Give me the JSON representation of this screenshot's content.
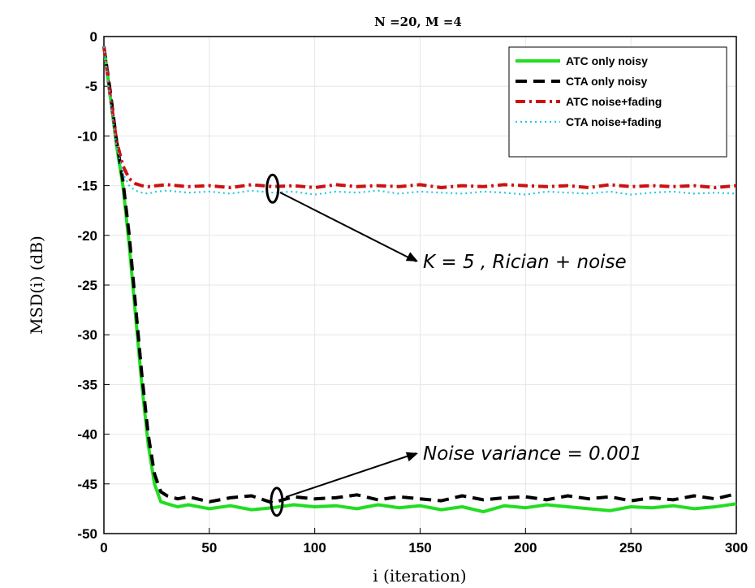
{
  "chart_data": {
    "type": "line",
    "title": "N =20, M =4",
    "xlabel": "i (iteration)",
    "ylabel": "MSD(i) (dB)",
    "xlim": [
      0,
      300
    ],
    "ylim": [
      -50,
      0
    ],
    "xticks": [
      0,
      50,
      100,
      150,
      200,
      250,
      300
    ],
    "yticks": [
      0,
      -5,
      -10,
      -15,
      -20,
      -25,
      -30,
      -35,
      -40,
      -45,
      -50
    ],
    "grid": true,
    "legend_position": "top-right",
    "series": [
      {
        "name": "ATC only noisy",
        "color": "#22dd22",
        "style": "solid",
        "x": [
          0,
          3,
          6,
          9,
          12,
          15,
          18,
          21,
          24,
          27,
          30,
          35,
          40,
          50,
          60,
          70,
          80,
          90,
          100,
          110,
          120,
          130,
          140,
          150,
          160,
          170,
          180,
          190,
          200,
          210,
          220,
          230,
          240,
          250,
          260,
          270,
          280,
          290,
          300
        ],
        "values": [
          -1,
          -6,
          -11,
          -15,
          -21,
          -28,
          -35,
          -41,
          -45,
          -46.8,
          -47,
          -47.3,
          -47.1,
          -47.5,
          -47.2,
          -47.6,
          -47.4,
          -47.1,
          -47.3,
          -47.2,
          -47.5,
          -47.1,
          -47.4,
          -47.2,
          -47.6,
          -47.3,
          -47.8,
          -47.2,
          -47.4,
          -47.1,
          -47.3,
          -47.5,
          -47.7,
          -47.3,
          -47.4,
          -47.2,
          -47.5,
          -47.3,
          -47
        ]
      },
      {
        "name": "CTA only noisy",
        "color": "#000000",
        "style": "dashed",
        "x": [
          0,
          3,
          6,
          9,
          12,
          15,
          18,
          21,
          24,
          27,
          30,
          35,
          40,
          50,
          60,
          70,
          80,
          90,
          100,
          110,
          120,
          130,
          140,
          150,
          160,
          170,
          180,
          190,
          200,
          210,
          220,
          230,
          240,
          250,
          260,
          270,
          280,
          290,
          300
        ],
        "values": [
          -1,
          -5.5,
          -10.5,
          -14.5,
          -20,
          -27,
          -34,
          -40,
          -44,
          -45.8,
          -46.2,
          -46.5,
          -46.3,
          -46.8,
          -46.4,
          -46.2,
          -46.9,
          -46.3,
          -46.5,
          -46.4,
          -46.1,
          -46.6,
          -46.3,
          -46.5,
          -46.7,
          -46.2,
          -46.6,
          -46.4,
          -46.3,
          -46.6,
          -46.2,
          -46.5,
          -46.3,
          -46.7,
          -46.4,
          -46.6,
          -46.2,
          -46.5,
          -46
        ]
      },
      {
        "name": "ATC noise+fading",
        "color": "#cc1111",
        "style": "dashdot",
        "x": [
          0,
          3,
          6,
          9,
          12,
          15,
          18,
          21,
          25,
          30,
          40,
          50,
          60,
          70,
          80,
          90,
          100,
          110,
          120,
          130,
          140,
          150,
          160,
          170,
          180,
          190,
          200,
          210,
          220,
          230,
          240,
          250,
          260,
          270,
          280,
          290,
          300
        ],
        "values": [
          -1,
          -6,
          -10.5,
          -13,
          -14.3,
          -14.8,
          -15,
          -15.1,
          -15,
          -14.9,
          -15.1,
          -15,
          -15.2,
          -14.9,
          -15.1,
          -15,
          -15.2,
          -14.9,
          -15.1,
          -15,
          -15.1,
          -14.9,
          -15.2,
          -15,
          -15.1,
          -14.9,
          -15,
          -15.1,
          -15,
          -15.2,
          -14.9,
          -15.1,
          -15,
          -15.1,
          -15,
          -15.2,
          -15
        ]
      },
      {
        "name": "CTA noise+fading",
        "color": "#22cce0",
        "style": "dotted",
        "x": [
          0,
          3,
          6,
          9,
          12,
          15,
          18,
          21,
          25,
          30,
          40,
          50,
          60,
          70,
          80,
          90,
          100,
          110,
          120,
          130,
          140,
          150,
          160,
          170,
          180,
          190,
          200,
          210,
          220,
          230,
          240,
          250,
          260,
          270,
          280,
          290,
          300
        ],
        "values": [
          -1,
          -6.5,
          -11,
          -13.8,
          -15,
          -15.5,
          -15.7,
          -15.8,
          -15.6,
          -15.5,
          -15.7,
          -15.6,
          -15.8,
          -15.5,
          -15.7,
          -15.6,
          -15.9,
          -15.6,
          -15.7,
          -15.5,
          -15.8,
          -15.6,
          -15.7,
          -15.8,
          -15.6,
          -15.7,
          -15.9,
          -15.6,
          -15.7,
          -15.8,
          -15.6,
          -15.9,
          -15.7,
          -15.6,
          -15.8,
          -15.7,
          -15.8
        ]
      }
    ],
    "annotations": [
      {
        "text": "K = 5 , Rician + noise",
        "x": 80,
        "y": -15.3
      },
      {
        "text": "Noise variance = 0.001",
        "x": 82,
        "y": -46.8
      }
    ]
  }
}
